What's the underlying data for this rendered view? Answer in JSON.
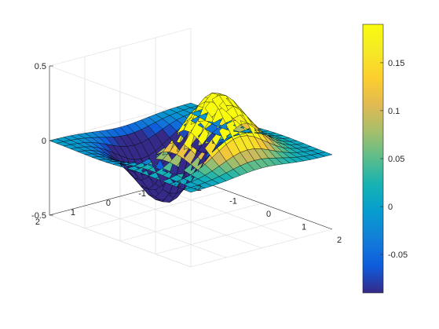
{
  "chart_data": {
    "type": "surface",
    "function": "z = x * exp(-x^2 - y^2)",
    "x_range": [
      -2,
      2
    ],
    "y_range": [
      -2,
      2
    ],
    "grid_step": 0.2,
    "zlim": [
      -0.5,
      0.5
    ],
    "colormap": "parula",
    "color_limits": [
      -0.09,
      0.19
    ],
    "x_ticks": [
      "-2",
      "-1",
      "0",
      "1",
      "2"
    ],
    "y_ticks": [
      "-2",
      "-1",
      "0",
      "1",
      "2"
    ],
    "z_ticks": [
      "-0.5",
      "0",
      "0.5"
    ],
    "colorbar_ticks": [
      "-0.05",
      "0",
      "0.05",
      "0.1",
      "0.15"
    ],
    "colorbar_tick_values": [
      -0.05,
      0,
      0.05,
      0.1,
      0.15
    ],
    "grid": true,
    "colorbar": "right",
    "edge_color": "#000000"
  }
}
